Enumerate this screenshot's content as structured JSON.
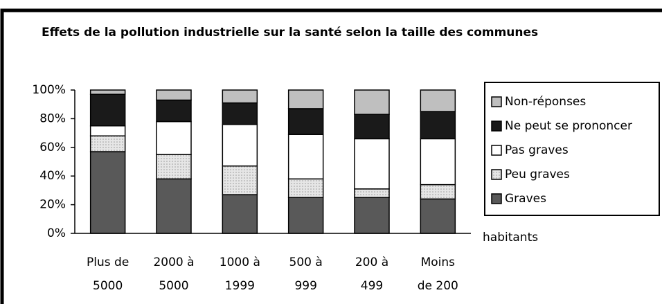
{
  "chart_data": {
    "type": "stacked_bar",
    "title": "Effets de la pollution industrielle sur la santé selon la taille des communes",
    "x_label": "habitants",
    "categories": [
      [
        "Plus de",
        "5000"
      ],
      [
        "2000 à",
        "5000"
      ],
      [
        "1000 à",
        "1999"
      ],
      [
        "500 à",
        "999"
      ],
      [
        "200 à",
        "499"
      ],
      [
        "Moins",
        "de 200"
      ]
    ],
    "series": [
      {
        "name": "Graves",
        "color": "#595959",
        "values": [
          57,
          38,
          27,
          25,
          25,
          24
        ]
      },
      {
        "name": "Peu graves",
        "color": "#d9d9d9",
        "values": [
          11,
          17,
          20,
          13,
          6,
          10
        ]
      },
      {
        "name": "Pas graves",
        "color": "#ffffff",
        "values": [
          7,
          23,
          29,
          31,
          35,
          32
        ]
      },
      {
        "name": "Ne peut se prononcer",
        "color": "#1a1a1a",
        "values": [
          22,
          15,
          15,
          18,
          17,
          19
        ]
      },
      {
        "name": "Non-réponses",
        "color": "#bfbfbf",
        "values": [
          3,
          7,
          9,
          13,
          17,
          15
        ]
      }
    ],
    "ylim": [
      0,
      100
    ],
    "yticks": [
      {
        "value": 0,
        "label": "0%"
      },
      {
        "value": 20,
        "label": "20%"
      },
      {
        "value": 40,
        "label": "40%"
      },
      {
        "value": 60,
        "label": "60%"
      },
      {
        "value": 80,
        "label": "80%"
      },
      {
        "value": 100,
        "label": "100%"
      }
    ],
    "legend": "right"
  }
}
